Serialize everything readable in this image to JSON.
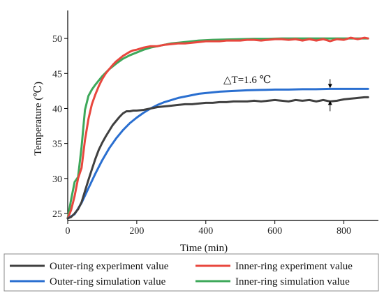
{
  "chart_data": {
    "type": "line",
    "xlabel": "Time (min)",
    "ylabel": "Temperature (℃)",
    "xlim": [
      0,
      900
    ],
    "ylim": [
      24,
      54
    ],
    "xticks": [
      0,
      200,
      400,
      600,
      800
    ],
    "yticks": [
      25,
      30,
      35,
      40,
      45,
      50
    ],
    "grid": false,
    "legend_placement": "bottom",
    "annotation": "△T=1.6 ℃",
    "annotation_x": 760,
    "annotation_between": [
      41.2,
      42.8
    ],
    "series": [
      {
        "name": "Outer-ring experiment value",
        "color": "#404040",
        "x": [
          0,
          10,
          20,
          30,
          40,
          50,
          60,
          70,
          80,
          90,
          100,
          110,
          120,
          130,
          140,
          150,
          160,
          170,
          180,
          190,
          200,
          220,
          240,
          260,
          280,
          300,
          320,
          340,
          360,
          380,
          400,
          420,
          440,
          460,
          480,
          500,
          520,
          540,
          560,
          580,
          600,
          620,
          640,
          660,
          680,
          700,
          720,
          740,
          760,
          780,
          800,
          820,
          840,
          860,
          870
        ],
        "y": [
          24.3,
          24.5,
          25.0,
          25.6,
          26.6,
          28.2,
          29.8,
          31.3,
          32.8,
          34.1,
          35.1,
          36.0,
          36.8,
          37.6,
          38.2,
          38.8,
          39.3,
          39.6,
          39.6,
          39.7,
          39.7,
          39.8,
          40.0,
          40.2,
          40.3,
          40.4,
          40.5,
          40.6,
          40.6,
          40.7,
          40.8,
          40.8,
          40.9,
          40.9,
          41.0,
          41.0,
          41.0,
          41.1,
          41.0,
          41.1,
          41.2,
          41.1,
          41.0,
          41.2,
          41.1,
          41.2,
          41.0,
          41.2,
          41.0,
          41.1,
          41.3,
          41.4,
          41.5,
          41.6,
          41.6
        ]
      },
      {
        "name": "Inner-ring experiment value",
        "color": "#e8473e",
        "x": [
          0,
          10,
          20,
          30,
          40,
          50,
          60,
          70,
          80,
          90,
          100,
          110,
          120,
          130,
          140,
          150,
          160,
          170,
          180,
          190,
          200,
          220,
          240,
          260,
          280,
          300,
          320,
          340,
          360,
          380,
          400,
          420,
          440,
          460,
          480,
          500,
          520,
          540,
          560,
          580,
          600,
          620,
          640,
          660,
          680,
          700,
          720,
          740,
          760,
          780,
          800,
          820,
          840,
          860,
          870
        ],
        "y": [
          24.3,
          25.5,
          27.5,
          30.0,
          31.5,
          35.5,
          38.5,
          40.6,
          42.0,
          43.2,
          44.2,
          45.0,
          45.6,
          46.2,
          46.7,
          47.1,
          47.5,
          47.8,
          48.1,
          48.3,
          48.4,
          48.7,
          48.9,
          48.9,
          49.1,
          49.2,
          49.3,
          49.3,
          49.4,
          49.5,
          49.6,
          49.6,
          49.6,
          49.7,
          49.7,
          49.7,
          49.8,
          49.8,
          49.7,
          49.8,
          49.9,
          49.9,
          49.8,
          49.9,
          49.7,
          49.9,
          49.7,
          49.9,
          49.6,
          49.9,
          49.8,
          50.1,
          49.9,
          50.1,
          50.0
        ]
      },
      {
        "name": "Outer-ring simulation value",
        "color": "#2a6fd0",
        "x": [
          0,
          20,
          40,
          60,
          80,
          100,
          120,
          140,
          160,
          180,
          200,
          220,
          240,
          260,
          280,
          300,
          320,
          340,
          360,
          380,
          400,
          440,
          480,
          520,
          560,
          600,
          640,
          680,
          720,
          760,
          800,
          840,
          870
        ],
        "y": [
          24.3,
          24.9,
          26.5,
          28.6,
          30.7,
          32.6,
          34.3,
          35.7,
          36.9,
          37.9,
          38.7,
          39.4,
          40.0,
          40.5,
          40.9,
          41.2,
          41.5,
          41.7,
          41.9,
          42.1,
          42.2,
          42.4,
          42.5,
          42.6,
          42.65,
          42.7,
          42.7,
          42.75,
          42.75,
          42.8,
          42.8,
          42.8,
          42.8
        ]
      },
      {
        "name": "Inner-ring simulation value",
        "color": "#3ea85a",
        "x": [
          0,
          10,
          20,
          30,
          40,
          50,
          60,
          70,
          80,
          90,
          100,
          120,
          140,
          160,
          180,
          200,
          220,
          240,
          260,
          280,
          300,
          340,
          380,
          420,
          460,
          500,
          540,
          580,
          620,
          660,
          700,
          740,
          780,
          820,
          870
        ],
        "y": [
          24.3,
          27.0,
          29.5,
          30.2,
          34.5,
          39.8,
          41.8,
          42.7,
          43.4,
          44.0,
          44.6,
          45.6,
          46.4,
          47.1,
          47.6,
          48.0,
          48.4,
          48.7,
          48.9,
          49.1,
          49.3,
          49.5,
          49.7,
          49.8,
          49.85,
          49.9,
          49.95,
          49.95,
          50.0,
          50.0,
          50.0,
          50.0,
          50.0,
          50.0,
          50.0
        ]
      }
    ]
  }
}
